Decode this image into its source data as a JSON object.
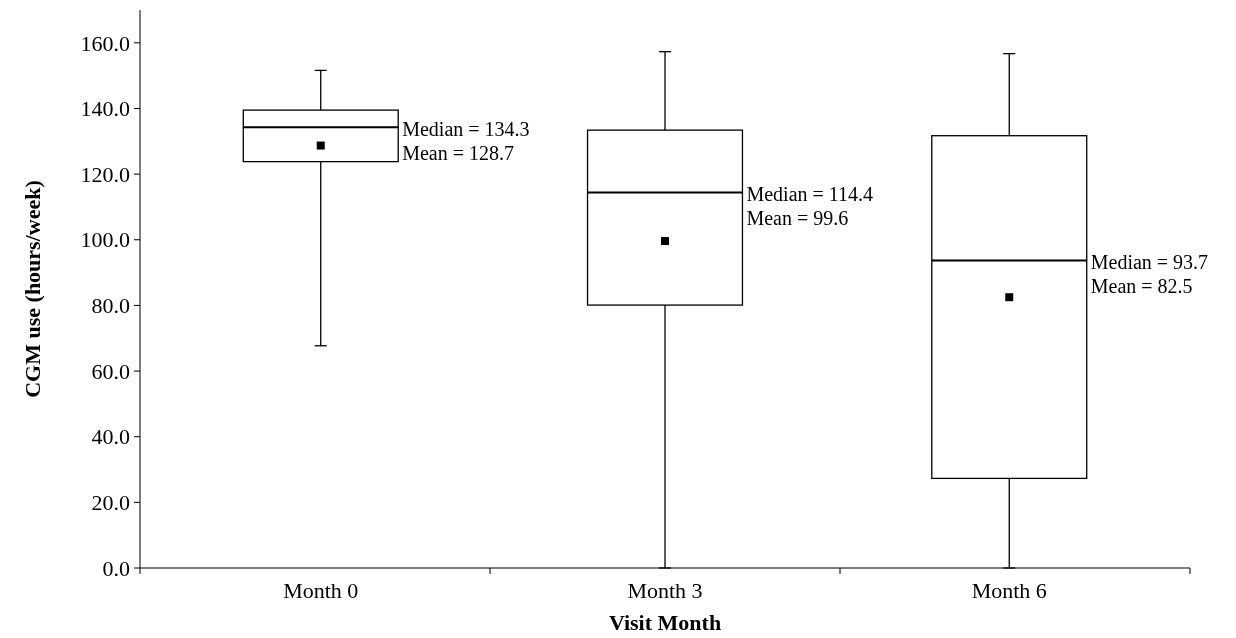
{
  "chart_data": {
    "type": "box",
    "xlabel": "Visit Month",
    "ylabel": "CGM use (hours/week)",
    "categories": [
      "Month 0",
      "Month 3",
      "Month 6"
    ],
    "boxes": [
      {
        "low": 67.7,
        "q1": 123.8,
        "median": 134.3,
        "q3": 139.5,
        "high": 151.6,
        "mean": 128.7
      },
      {
        "low": 0,
        "q1": 80.1,
        "median": 114.4,
        "q3": 133.4,
        "high": 157.3,
        "mean": 99.6
      },
      {
        "low": 0,
        "q1": 27.3,
        "median": 93.7,
        "q3": 131.7,
        "high": 156.7,
        "mean": 82.5
      }
    ],
    "ylim": [
      0,
      170
    ],
    "yticks": [
      {
        "value": 0,
        "label": "0.0"
      },
      {
        "value": 20,
        "label": "20.0"
      },
      {
        "value": 40,
        "label": "40.0"
      },
      {
        "value": 60,
        "label": "60.0"
      },
      {
        "value": 80,
        "label": "80.0"
      },
      {
        "value": 100,
        "label": "100.0"
      },
      {
        "value": 120,
        "label": "120.0"
      },
      {
        "value": 140,
        "label": "140.0"
      },
      {
        "value": 160,
        "label": "160.0"
      }
    ],
    "marker": "square",
    "grid": false,
    "annotations": [
      "Median = 134.3",
      "Mean = 128.7",
      "Median = 114.4",
      "Mean = 99.6",
      "Median = 93.7",
      "Mean = 82.5"
    ]
  }
}
